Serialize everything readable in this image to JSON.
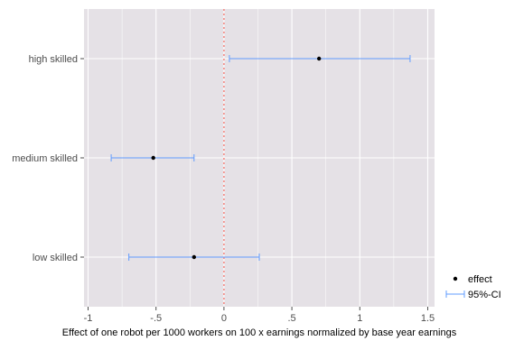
{
  "chart_data": {
    "type": "scatter",
    "xlabel": "Effect of one robot per 1000 workers on 100 x earnings normalized by base year earnings",
    "ylabel": "",
    "xlim": [
      -1.03,
      1.55
    ],
    "x_ticks": [
      {
        "value": -1,
        "label": "-1"
      },
      {
        "value": -0.5,
        "label": "-.5"
      },
      {
        "value": 0,
        "label": "0"
      },
      {
        "value": 0.5,
        "label": ".5"
      },
      {
        "value": 1,
        "label": "1"
      },
      {
        "value": 1.5,
        "label": "1.5"
      }
    ],
    "categories": [
      "high skilled",
      "medium skilled",
      "low skilled"
    ],
    "effect": [
      0.7,
      -0.52,
      -0.22
    ],
    "ci_low": [
      0.04,
      -0.83,
      -0.7
    ],
    "ci_high": [
      1.37,
      -0.22,
      0.26
    ],
    "reference_line": {
      "x": 0,
      "style": "dotted",
      "color": "#f8766d"
    },
    "legend": {
      "position": "right",
      "items": [
        {
          "label": "effect",
          "marker": "point",
          "color": "#000000"
        },
        {
          "label": "95%-CI",
          "marker": "errorbar",
          "color": "#619cff"
        }
      ]
    },
    "colors": {
      "panel_bg": "#e5e1e6",
      "grid": "#ffffff",
      "point": "#000000",
      "ci": "#619cff"
    },
    "grid": true
  }
}
